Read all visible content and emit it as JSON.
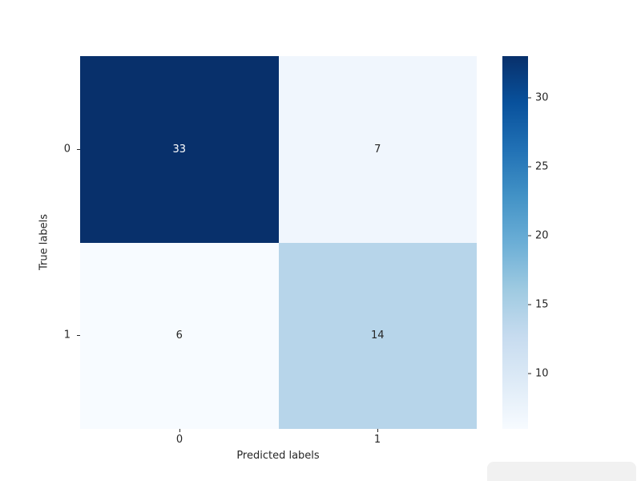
{
  "chart_data": {
    "type": "heatmap",
    "title": "",
    "xlabel": "Predicted labels",
    "ylabel": "True labels",
    "x_tick_labels": [
      "0",
      "1"
    ],
    "y_tick_labels": [
      "0",
      "1"
    ],
    "matrix": [
      [
        33,
        7
      ],
      [
        6,
        14
      ]
    ],
    "vmin": 6,
    "vmax": 33,
    "colormap": "Blues",
    "colormap_stops": [
      "#f7fbff",
      "#deebf7",
      "#c6dbef",
      "#9ecae1",
      "#6baed6",
      "#4292c6",
      "#2171b5",
      "#08519c",
      "#08306b"
    ],
    "annot_color_dark": "#262626",
    "annot_color_light": "#ffffff",
    "colorbar_ticks": [
      10,
      15,
      20,
      25,
      30
    ],
    "legend_position": "right-colorbar",
    "grid": false,
    "background_color": "#ffffff"
  }
}
